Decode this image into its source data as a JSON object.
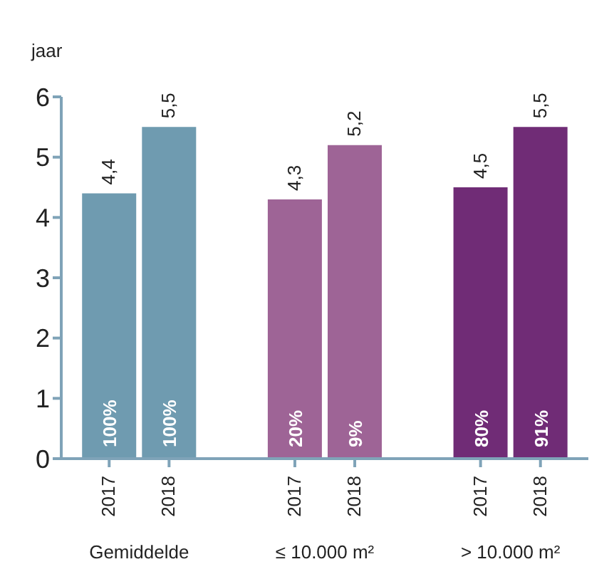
{
  "chart_data": {
    "type": "bar",
    "ylabel": "jaar",
    "categories": [
      "2017",
      "2018",
      "2017",
      "2018",
      "2017",
      "2018"
    ],
    "values": [
      4.4,
      5.5,
      4.3,
      5.2,
      4.5,
      5.5
    ],
    "value_labels": [
      "4,4",
      "5,5",
      "4,3",
      "5,2",
      "4,5",
      "5,5"
    ],
    "colors": [
      "#6f9bb0",
      "#6f9bb0",
      "#9e6496",
      "#9e6496",
      "#702c76",
      "#702c76"
    ],
    "ylim": [
      0,
      6
    ],
    "yticks": [
      0,
      1,
      2,
      3,
      4,
      5,
      6
    ],
    "annotations": [
      "100%",
      "100%",
      "20%",
      "9%",
      "80%",
      "91%",
      "Gemiddelde",
      "≤ 10.000 m²",
      "> 10.000 m²"
    ]
  }
}
